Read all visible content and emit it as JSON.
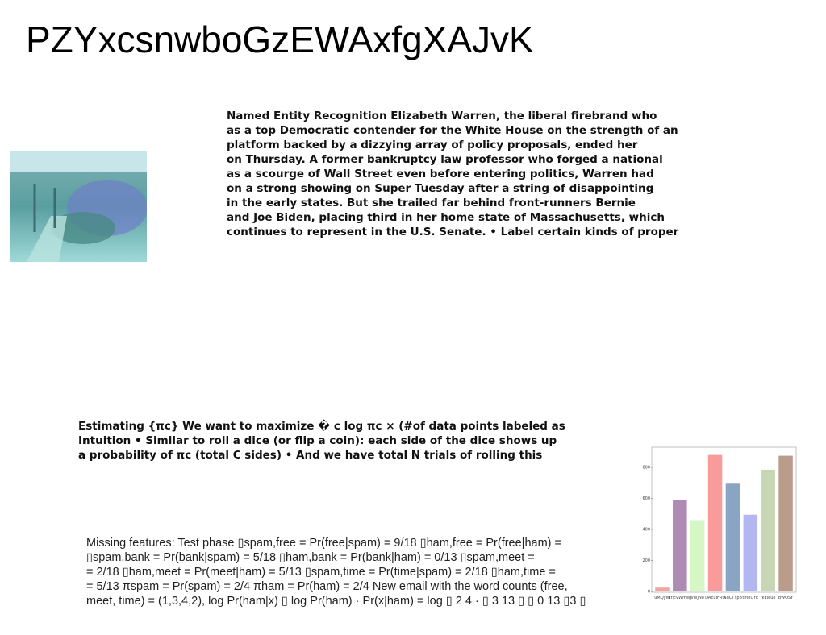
{
  "title": "PZYxcsnwboGzEWAxfgXAJvK",
  "paragraph1": [
    "Named Entity Recognition Elizabeth Warren, the liberal firebrand who",
    "as a top Democratic contender for the White House on the strength of an",
    "platform backed by a dizzying array of policy proposals, ended her",
    "on Thursday. A former bankruptcy law professor who forged a national",
    "as a scourge of Wall Street even before entering politics, Warren had",
    "on a strong showing on Super Tuesday after a string of disappointing",
    "in the early states. But she trailed far behind front-runners Bernie",
    "and Joe Biden, placing third in her home state of Massachusetts, which",
    "continues to represent in the U.S. Senate. • Label certain kinds of proper"
  ],
  "paragraph2": [
    "Estimating {πc} We want to maximize � c log πc × (#of data points labeled as",
    "Intuition • Similar to roll a dice (or flip a coin): each side of the dice shows up",
    "a probability of πc (total C sides) • And we have total N trials of rolling this"
  ],
  "paragraph3": [
    "Missing features: Test phase ▯spam,free = Pr(free|spam) = 9/18 ▯ham,free = Pr(free|ham) =",
    "▯spam,bank = Pr(bank|spam) = 5/18 ▯ham,bank = Pr(bank|ham) = 0/13 ▯spam,meet =",
    "= 2/18 ▯ham,meet = Pr(meet|ham) = 5/13 ▯spam,time = Pr(time|spam) = 2/18 ▯ham,time =",
    "= 5/13 πspam = Pr(spam) = 2/4 πham = Pr(ham) = 2/4 New email with the word counts (free,",
    "meet, time) = (1,3,4,2), log Pr(ham|x) ▯ log Pr(ham) · Pr(x|ham) = log ▯ 2 4 · ▯ 3 13 ▯ ▯ 0 13 ▯3 ▯"
  ],
  "chart_data": {
    "type": "bar",
    "categories": [
      "uMQyW",
      "EricVWmeg",
      "vWJNo",
      "DAEuIFRU",
      "NuCTYpB",
      "tmeUYE",
      "fkEleue",
      "BWOSY"
    ],
    "values": [
      25,
      590,
      460,
      880,
      700,
      495,
      785,
      875
    ],
    "colors": [
      "#f4a3a3",
      "#ae8bb3",
      "#d4f7c4",
      "#f99b9b",
      "#89a5c3",
      "#b2b8ef",
      "#c9d6b6",
      "#b99c8a"
    ],
    "ylim": [
      0,
      930
    ],
    "yticks": [
      0,
      200,
      400,
      600,
      800
    ]
  }
}
